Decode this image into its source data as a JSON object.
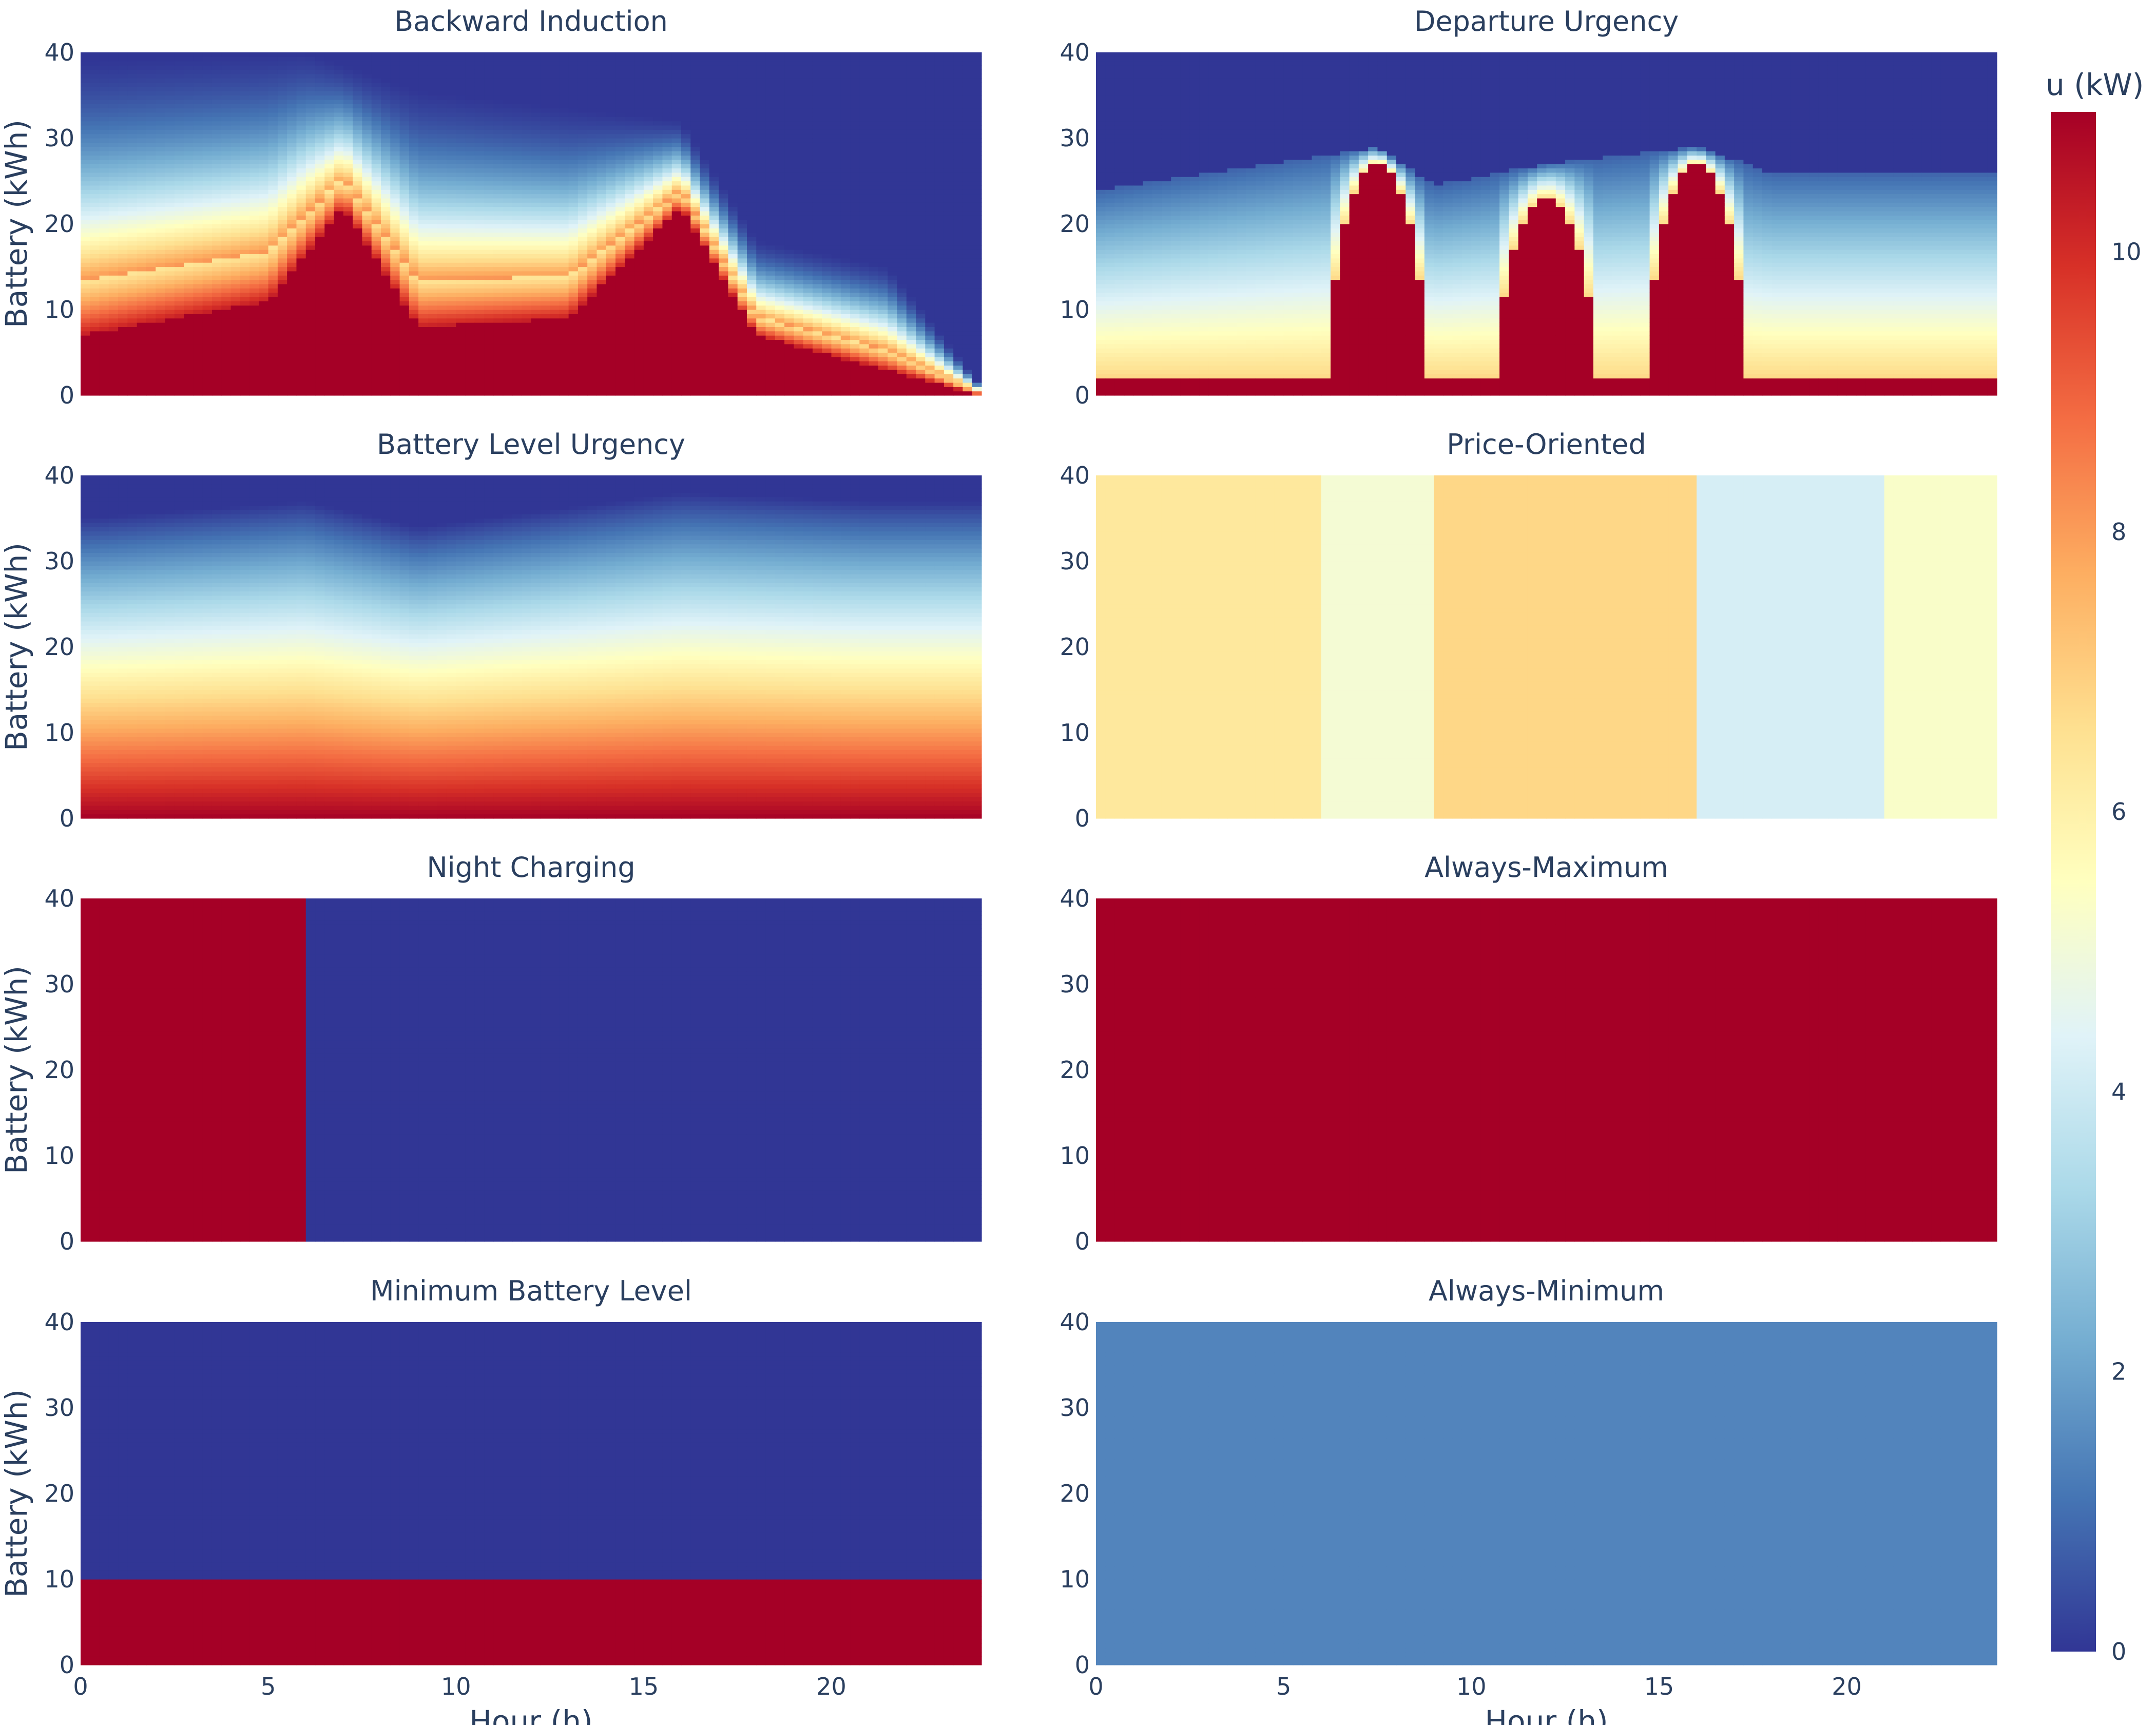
{
  "colors": {
    "text": "#2a3f5f",
    "colorscale": [
      "#313695",
      "#4575b4",
      "#74add1",
      "#abd9e9",
      "#e0f3f8",
      "#ffffbf",
      "#fee090",
      "#fdae61",
      "#f46d43",
      "#d73027",
      "#a50026"
    ]
  },
  "chart_data": {
    "type": "heatmap",
    "shared_axes": {
      "xlabel": "Hour (h)",
      "ylabel": "Battery (kWh)",
      "xlim": [
        0,
        24
      ],
      "ylim": [
        0,
        40
      ],
      "x_ticks": [
        "0",
        "5",
        "10",
        "15",
        "20"
      ],
      "y_ticks": [
        "0",
        "10",
        "20",
        "30",
        "40"
      ]
    },
    "colorbar": {
      "title": "u (kW)",
      "range": [
        0,
        11
      ],
      "ticks": [
        "0",
        "2",
        "4",
        "6",
        "8",
        "10"
      ]
    },
    "panels": [
      {
        "title": "Backward Induction",
        "pattern": "backward",
        "description_values": {
          "blue_top_kwh": [
            [
              0,
              39
            ],
            [
              6,
              40
            ],
            [
              9,
              35.5
            ],
            [
              16,
              32
            ],
            [
              18,
              18
            ],
            [
              21.5,
              15
            ],
            [
              24,
              1
            ]
          ],
          "red_boundary_kwh": [
            [
              0,
              7
            ],
            [
              5,
              11
            ],
            [
              7,
              22
            ],
            [
              9,
              8
            ],
            [
              13,
              9
            ],
            [
              16,
              22
            ],
            [
              18,
              7
            ],
            [
              24,
              0
            ]
          ]
        }
      },
      {
        "title": "Departure Urgency",
        "pattern": "departure",
        "description_values": {
          "blue_top_kwh": [
            [
              0,
              24
            ],
            [
              7.5,
              29
            ],
            [
              9,
              24.5
            ],
            [
              12,
              27
            ],
            [
              16,
              29
            ],
            [
              18,
              26
            ],
            [
              24,
              26
            ]
          ],
          "red_peaks_kwh": [
            [
              7.5,
              27
            ],
            [
              12,
              23
            ],
            [
              16,
              27
            ]
          ]
        }
      },
      {
        "title": "Battery Level Urgency",
        "pattern": "level",
        "description_values": {
          "blue_top_kwh": [
            [
              0,
              35
            ],
            [
              6,
              37
            ],
            [
              9,
              34
            ],
            [
              16,
              38
            ],
            [
              21,
              37
            ],
            [
              24,
              37
            ]
          ],
          "neutral_level_kwh": 19
        }
      },
      {
        "title": "Price-Oriented",
        "pattern": "price",
        "bands": [
          {
            "x0": 0,
            "x1": 6,
            "u": 6.3
          },
          {
            "x0": 6,
            "x1": 9,
            "u": 5.1
          },
          {
            "x0": 9,
            "x1": 16,
            "u": 6.8
          },
          {
            "x0": 16,
            "x1": 21,
            "u": 4.2
          },
          {
            "x0": 21,
            "x1": 24,
            "u": 5.3
          }
        ]
      },
      {
        "title": "Night Charging",
        "pattern": "night",
        "bands": [
          {
            "x0": 0,
            "x1": 6,
            "u": 11
          },
          {
            "x0": 6,
            "x1": 24,
            "u": 0
          }
        ]
      },
      {
        "title": "Always-Maximum",
        "pattern": "uniform",
        "u": 11
      },
      {
        "title": "Minimum Battery Level",
        "pattern": "minlevel",
        "threshold_kwh": 10,
        "u_below": 11,
        "u_above": 0
      },
      {
        "title": "Always-Minimum",
        "pattern": "uniform",
        "u": 1.4
      }
    ]
  }
}
